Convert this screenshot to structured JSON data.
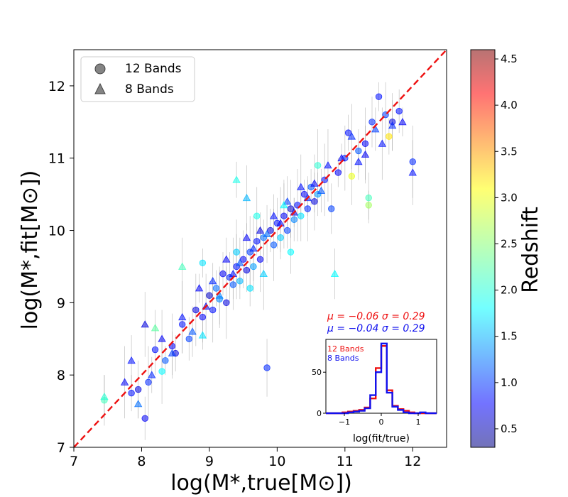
{
  "chart_data": {
    "type": "scatter",
    "xlabel": "log(M*,true[M⊙])",
    "ylabel": "log(M*,fit[M⊙])",
    "xlim": [
      7,
      12.5
    ],
    "ylim": [
      7,
      12.5
    ],
    "xticks": [
      7,
      8,
      9,
      10,
      11,
      12
    ],
    "yticks": [
      7,
      8,
      9,
      10,
      11,
      12
    ],
    "legend": {
      "location": "top-left",
      "entries": [
        {
          "marker": "circle",
          "label": "12 Bands"
        },
        {
          "marker": "triangle",
          "label": "8 Bands"
        }
      ]
    },
    "one_to_one_line": {
      "color": "#ee1111",
      "style": "dashed",
      "from": [
        7,
        7
      ],
      "to": [
        12.5,
        12.5
      ]
    },
    "colorbar": {
      "label": "Redshift",
      "range": [
        0.3,
        4.6
      ],
      "ticks": [
        0.5,
        1.0,
        1.5,
        2.0,
        2.5,
        3.0,
        3.5,
        4.0,
        4.5
      ],
      "colormap": "jet"
    },
    "stats": [
      {
        "label": "μ = −0.06  σ = 0.29",
        "color": "#ee1111"
      },
      {
        "label": "μ = −0.04  σ = 0.29",
        "color": "#1111ee"
      }
    ],
    "points_12_bands": [
      [
        7.85,
        7.75,
        0.9
      ],
      [
        7.95,
        7.8,
        0.7
      ],
      [
        8.05,
        7.4,
        0.8
      ],
      [
        8.1,
        7.9,
        1.0
      ],
      [
        8.2,
        8.35,
        0.9
      ],
      [
        8.35,
        8.2,
        1.2
      ],
      [
        8.45,
        8.4,
        0.8
      ],
      [
        8.5,
        8.3,
        0.7
      ],
      [
        8.6,
        8.7,
        0.9
      ],
      [
        8.7,
        8.5,
        1.1
      ],
      [
        8.8,
        8.9,
        0.7
      ],
      [
        8.9,
        8.8,
        0.8
      ],
      [
        9.0,
        9.1,
        0.6
      ],
      [
        9.05,
        8.9,
        0.9
      ],
      [
        9.1,
        9.2,
        1.3
      ],
      [
        9.15,
        9.05,
        1.4
      ],
      [
        9.2,
        9.4,
        0.8
      ],
      [
        9.25,
        9.0,
        0.7
      ],
      [
        9.3,
        9.35,
        1.0
      ],
      [
        9.35,
        9.25,
        1.2
      ],
      [
        9.4,
        9.5,
        0.9
      ],
      [
        9.45,
        9.3,
        1.6
      ],
      [
        9.5,
        9.6,
        0.8
      ],
      [
        9.55,
        9.45,
        0.7
      ],
      [
        9.6,
        9.7,
        1.1
      ],
      [
        9.65,
        9.5,
        1.5
      ],
      [
        9.7,
        9.85,
        0.9
      ],
      [
        9.75,
        9.6,
        0.8
      ],
      [
        9.8,
        9.9,
        1.3
      ],
      [
        9.85,
        8.1,
        1.0
      ],
      [
        9.9,
        10.0,
        0.7
      ],
      [
        9.95,
        9.8,
        1.2
      ],
      [
        10.0,
        10.1,
        0.9
      ],
      [
        10.05,
        9.9,
        1.7
      ],
      [
        10.1,
        10.2,
        0.8
      ],
      [
        10.15,
        10.0,
        1.1
      ],
      [
        10.2,
        10.3,
        0.6
      ],
      [
        10.25,
        10.15,
        1.4
      ],
      [
        10.3,
        10.35,
        0.9
      ],
      [
        10.35,
        10.2,
        1.8
      ],
      [
        10.4,
        10.5,
        0.8
      ],
      [
        10.45,
        10.3,
        1.0
      ],
      [
        10.5,
        10.6,
        1.2
      ],
      [
        10.55,
        10.4,
        0.7
      ],
      [
        10.6,
        10.5,
        1.5
      ],
      [
        10.7,
        10.7,
        0.9
      ],
      [
        10.8,
        10.3,
        1.1
      ],
      [
        10.9,
        10.8,
        0.8
      ],
      [
        11.0,
        11.0,
        1.0
      ],
      [
        11.05,
        11.35,
        0.9
      ],
      [
        11.1,
        10.75,
        2.9
      ],
      [
        11.2,
        11.1,
        1.2
      ],
      [
        11.3,
        11.2,
        0.8
      ],
      [
        11.4,
        11.5,
        1.0
      ],
      [
        11.5,
        11.85,
        0.9
      ],
      [
        11.6,
        11.6,
        1.1
      ],
      [
        11.65,
        11.3,
        3.1
      ],
      [
        11.7,
        11.5,
        0.7
      ],
      [
        11.8,
        11.65,
        0.9
      ],
      [
        12.0,
        10.95,
        1.0
      ],
      [
        11.35,
        10.45,
        2.2
      ],
      [
        11.35,
        10.35,
        2.6
      ],
      [
        8.3,
        8.05,
        1.9
      ],
      [
        9.6,
        9.2,
        1.8
      ],
      [
        9.7,
        10.2,
        2.0
      ],
      [
        10.2,
        9.7,
        1.9
      ],
      [
        10.6,
        10.9,
        2.1
      ],
      [
        7.45,
        7.65,
        2.2
      ],
      [
        8.9,
        9.55,
        1.8
      ],
      [
        9.4,
        9.7,
        1.7
      ]
    ],
    "points_8_bands": [
      [
        7.75,
        7.9,
        0.8
      ],
      [
        7.85,
        8.2,
        0.9
      ],
      [
        7.95,
        7.6,
        1.3
      ],
      [
        8.05,
        8.7,
        0.7
      ],
      [
        8.15,
        8.0,
        1.0
      ],
      [
        8.3,
        8.5,
        0.8
      ],
      [
        8.45,
        8.3,
        1.1
      ],
      [
        8.6,
        8.8,
        0.9
      ],
      [
        8.75,
        8.6,
        1.2
      ],
      [
        8.85,
        9.2,
        0.8
      ],
      [
        8.95,
        8.95,
        0.7
      ],
      [
        9.05,
        9.3,
        1.0
      ],
      [
        9.15,
        9.1,
        1.4
      ],
      [
        9.25,
        9.6,
        0.8
      ],
      [
        9.35,
        9.4,
        0.9
      ],
      [
        9.45,
        9.55,
        1.2
      ],
      [
        9.55,
        9.9,
        0.8
      ],
      [
        9.65,
        9.75,
        1.0
      ],
      [
        9.75,
        10.0,
        0.7
      ],
      [
        9.85,
        9.95,
        1.3
      ],
      [
        9.95,
        10.2,
        0.9
      ],
      [
        10.05,
        10.1,
        0.8
      ],
      [
        10.15,
        10.4,
        1.1
      ],
      [
        10.25,
        10.25,
        0.7
      ],
      [
        10.35,
        10.6,
        0.9
      ],
      [
        10.45,
        10.45,
        1.0
      ],
      [
        10.55,
        10.65,
        0.8
      ],
      [
        10.65,
        10.55,
        1.2
      ],
      [
        10.75,
        10.9,
        0.9
      ],
      [
        10.85,
        9.4,
        1.9
      ],
      [
        10.95,
        11.0,
        0.8
      ],
      [
        11.1,
        11.3,
        1.0
      ],
      [
        11.2,
        10.95,
        0.9
      ],
      [
        11.3,
        11.05,
        0.8
      ],
      [
        11.45,
        11.4,
        1.1
      ],
      [
        11.55,
        11.2,
        0.9
      ],
      [
        11.7,
        11.45,
        1.0
      ],
      [
        11.85,
        11.5,
        0.8
      ],
      [
        12.0,
        10.8,
        0.9
      ],
      [
        9.4,
        10.7,
        2.0
      ],
      [
        8.6,
        9.5,
        2.2
      ],
      [
        7.45,
        7.7,
        2.1
      ],
      [
        9.8,
        9.4,
        1.7
      ],
      [
        10.1,
        10.35,
        1.9
      ],
      [
        8.9,
        8.55,
        1.8
      ],
      [
        9.55,
        10.45,
        1.6
      ],
      [
        8.2,
        8.65,
        2.3
      ]
    ],
    "inset": {
      "xlabel": "log(fit/true)",
      "xlim": [
        -1.5,
        1.5
      ],
      "ylim": [
        0,
        90
      ],
      "xticks": [
        -1,
        0,
        1
      ],
      "yticks": [
        0,
        50
      ],
      "legend": [
        {
          "label": "12 Bands",
          "color": "#ee1111"
        },
        {
          "label": "8 Bands",
          "color": "#1111ee"
        }
      ],
      "bin_edges": [
        -1.5,
        -1.35,
        -1.2,
        -1.05,
        -0.9,
        -0.75,
        -0.6,
        -0.45,
        -0.3,
        -0.15,
        0.0,
        0.15,
        0.3,
        0.45,
        0.6,
        0.75,
        0.9,
        1.05,
        1.2,
        1.35,
        1.5
      ],
      "series": [
        {
          "name": "12 Bands",
          "color": "#ee1111",
          "counts": [
            0,
            0,
            0,
            1,
            2,
            3,
            4,
            7,
            18,
            55,
            82,
            28,
            9,
            5,
            3,
            1,
            0,
            0,
            0,
            0
          ]
        },
        {
          "name": "8 Bands",
          "color": "#1111ee",
          "counts": [
            0,
            0,
            0,
            0,
            1,
            2,
            3,
            6,
            22,
            50,
            85,
            25,
            8,
            4,
            1,
            0,
            0,
            1,
            0,
            0
          ]
        }
      ]
    }
  }
}
